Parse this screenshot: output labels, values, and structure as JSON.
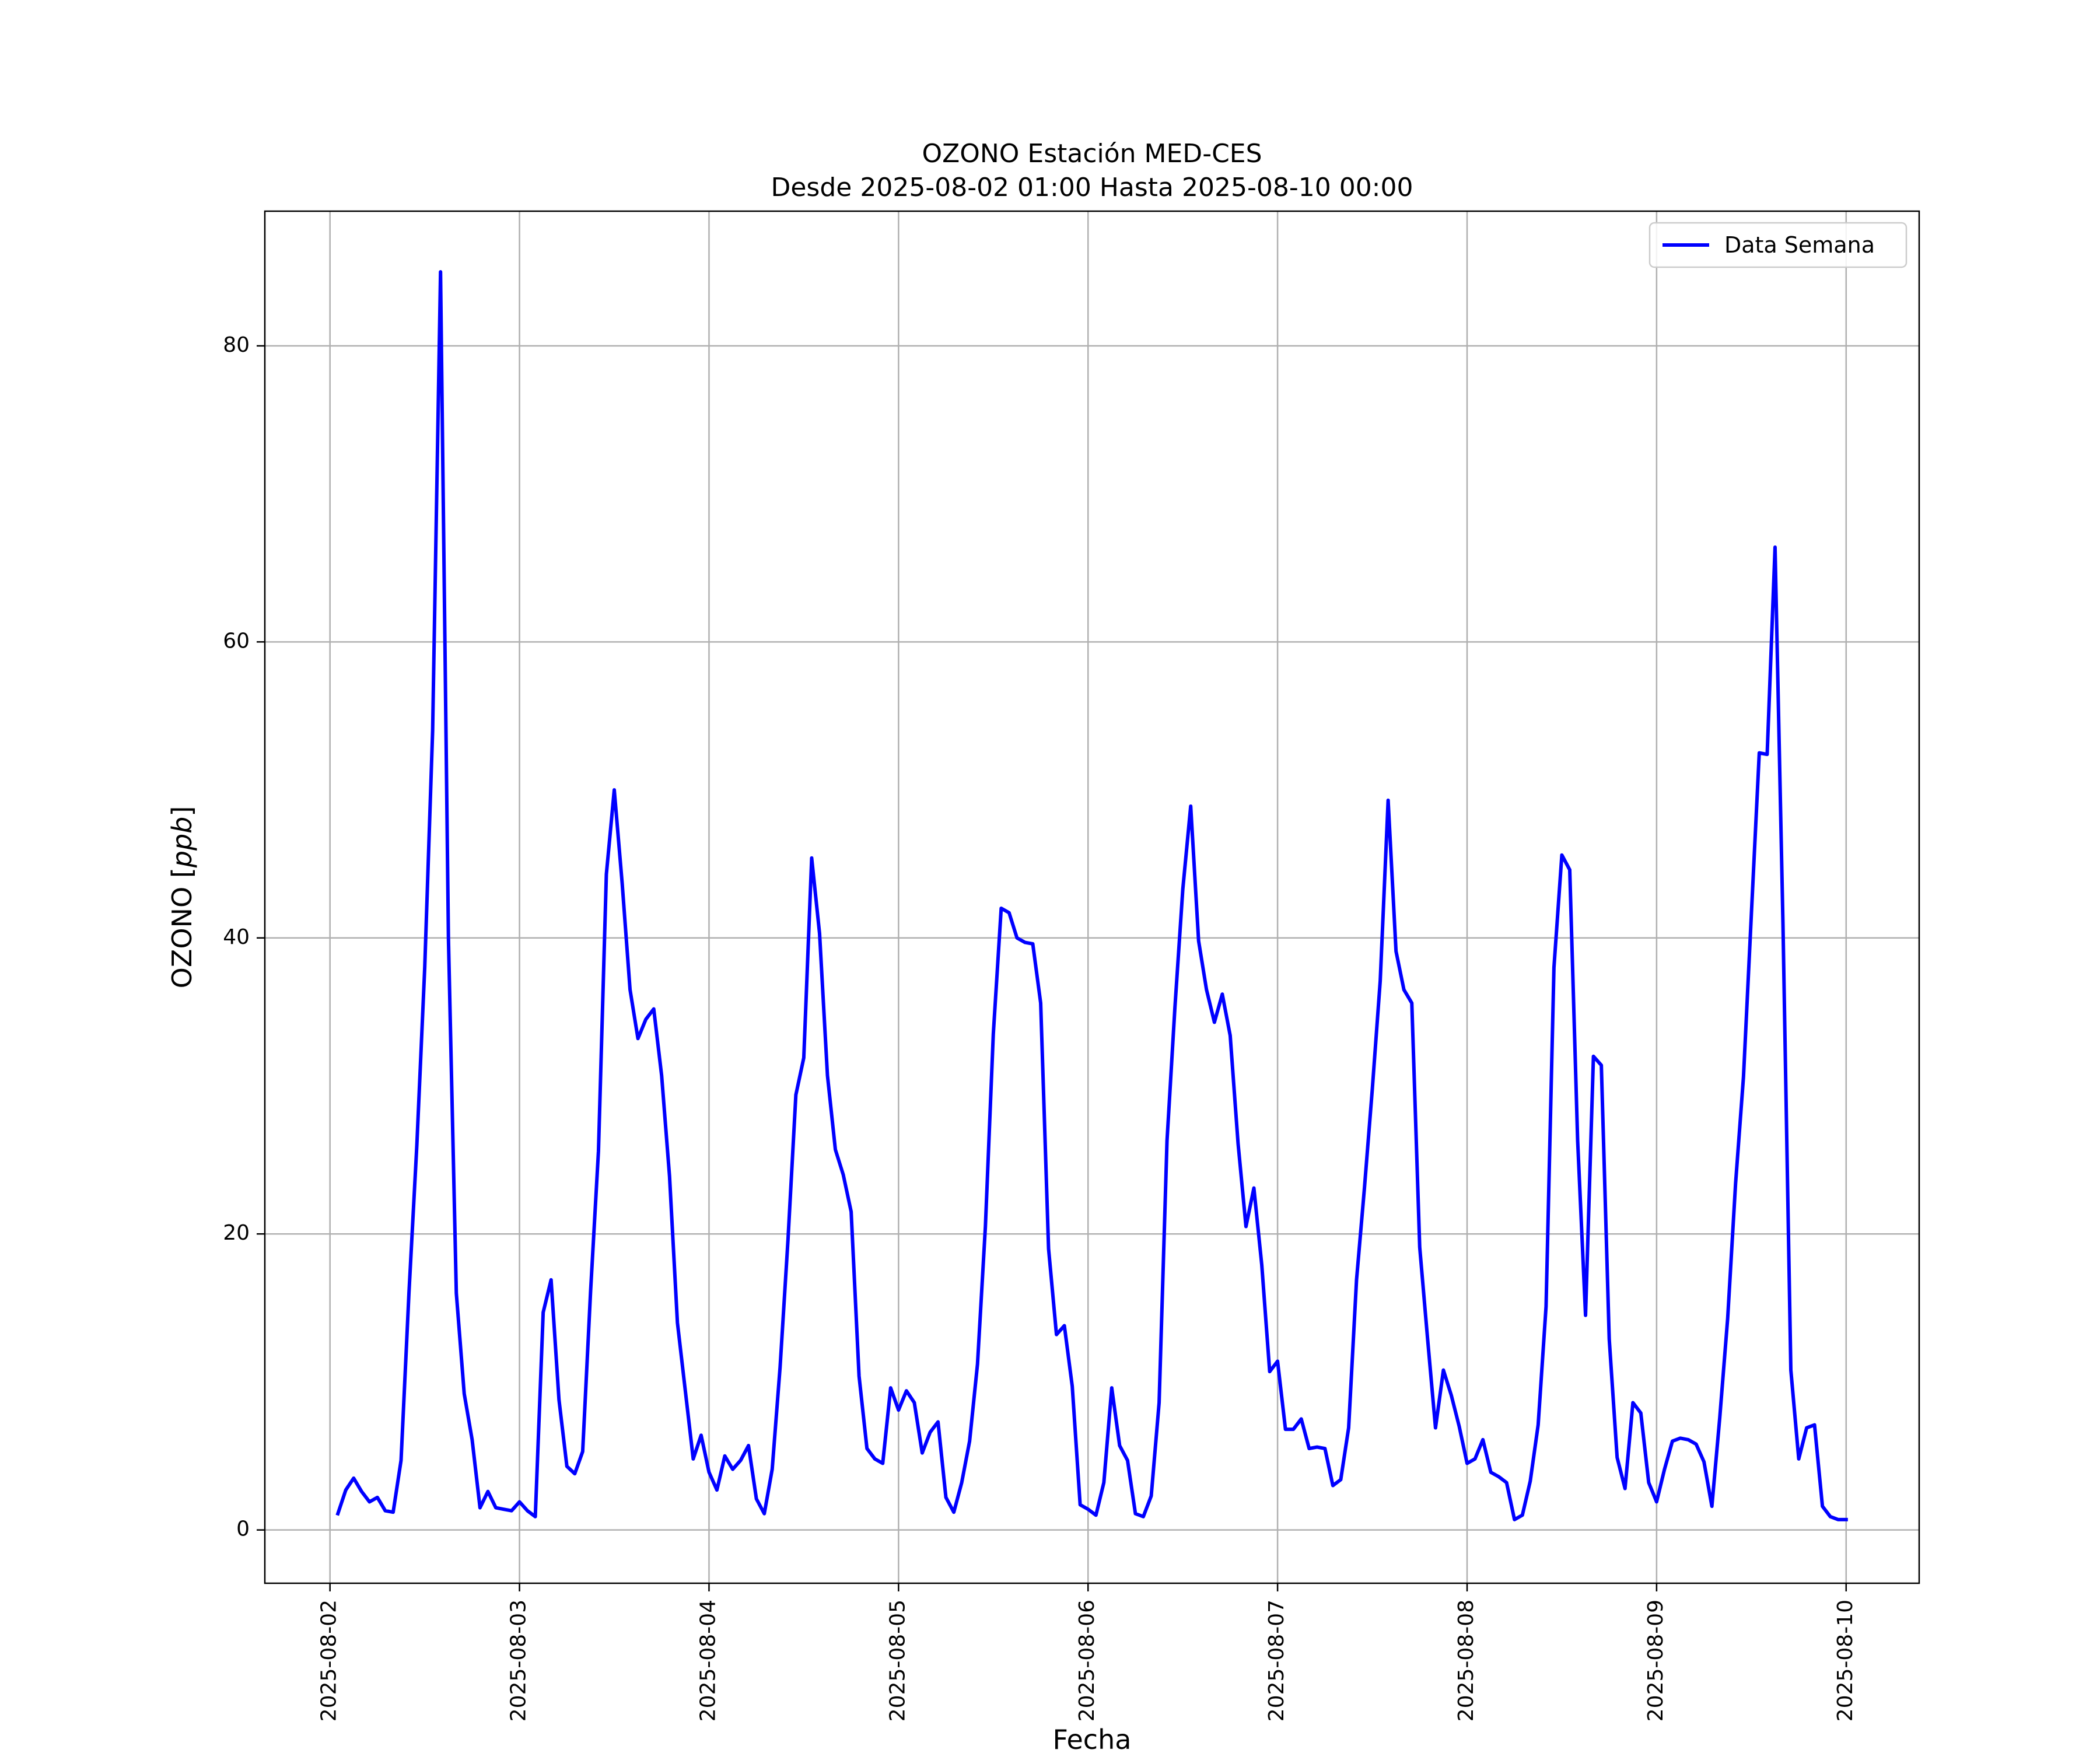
{
  "chart_data": {
    "type": "line",
    "title": "OZONO Estación MED-CES",
    "subtitle": "Desde 2025-08-02 01:00 Hasta 2025-08-10 00:00",
    "xlabel": "Fecha",
    "ylabel": "OZONO [ppb]",
    "ylabel_parts": {
      "main": "OZONO ",
      "open": "[",
      "unit": "ppb",
      "close": "]"
    },
    "xlim": [
      "2025-08-01 15:45",
      "2025-08-10 09:15"
    ],
    "ylim": [
      -3.6,
      89.1
    ],
    "x_ticks": [
      "2025-08-02",
      "2025-08-03",
      "2025-08-04",
      "2025-08-05",
      "2025-08-06",
      "2025-08-07",
      "2025-08-08",
      "2025-08-09",
      "2025-08-10"
    ],
    "y_ticks": [
      0,
      20,
      40,
      60,
      80
    ],
    "grid": true,
    "legend": {
      "position": "upper right",
      "entries": [
        "Data Semana"
      ]
    },
    "series": [
      {
        "name": "Data Semana",
        "color": "#0000ff",
        "start": "2025-08-02 01:00",
        "interval_hours": 1,
        "values": [
          1.1,
          2.7,
          3.5,
          2.6,
          1.9,
          2.2,
          1.3,
          1.2,
          4.7,
          16.0,
          26.0,
          38.0,
          54.0,
          85.0,
          40.0,
          16.0,
          9.2,
          6.1,
          1.5,
          2.6,
          1.5,
          1.4,
          1.3,
          1.9,
          1.3,
          0.9,
          14.7,
          16.9,
          8.8,
          4.3,
          3.8,
          5.3,
          16.1,
          25.6,
          44.3,
          50.0,
          43.7,
          36.5,
          33.2,
          34.5,
          35.2,
          30.7,
          23.9,
          14.0,
          9.4,
          4.8,
          6.4,
          3.9,
          2.7,
          5.0,
          4.1,
          4.7,
          5.7,
          2.1,
          1.1,
          4.1,
          11.0,
          19.6,
          29.4,
          31.9,
          45.4,
          40.3,
          30.7,
          25.7,
          24.0,
          21.5,
          10.4,
          5.5,
          4.8,
          4.5,
          9.6,
          8.1,
          9.4,
          8.6,
          5.2,
          6.6,
          7.3,
          2.2,
          1.2,
          3.2,
          6.0,
          11.2,
          20.5,
          33.5,
          42.0,
          41.7,
          40.0,
          39.7,
          39.6,
          35.6,
          19.0,
          13.2,
          13.8,
          9.7,
          1.7,
          1.4,
          1.0,
          3.2,
          9.6,
          5.7,
          4.7,
          1.1,
          0.9,
          2.3,
          8.6,
          26.3,
          35.3,
          43.3,
          48.9,
          39.8,
          36.5,
          34.3,
          36.2,
          33.4,
          26.1,
          20.5,
          23.1,
          17.9,
          10.7,
          11.4,
          6.8,
          6.8,
          7.5,
          5.5,
          5.6,
          5.5,
          3.0,
          3.4,
          6.9,
          16.9,
          23.1,
          29.8,
          37.1,
          49.3,
          39.1,
          36.5,
          35.6,
          19.1,
          12.9,
          6.9,
          10.8,
          9.1,
          7.0,
          4.5,
          4.8,
          6.1,
          3.9,
          3.6,
          3.2,
          0.7,
          1.0,
          3.3,
          7.1,
          15.1,
          38.0,
          45.6,
          44.6,
          26.3,
          14.5,
          32.0,
          31.4,
          12.9,
          4.9,
          2.8,
          8.6,
          7.9,
          3.2,
          1.9,
          4.1,
          6.0,
          6.2,
          6.1,
          5.8,
          4.6,
          1.6,
          7.6,
          14.3,
          23.4,
          30.6,
          41.6,
          52.5,
          52.4,
          66.4,
          41.0,
          10.8,
          4.8,
          6.9,
          7.1,
          1.6,
          0.9,
          0.7,
          0.7
        ]
      }
    ]
  }
}
